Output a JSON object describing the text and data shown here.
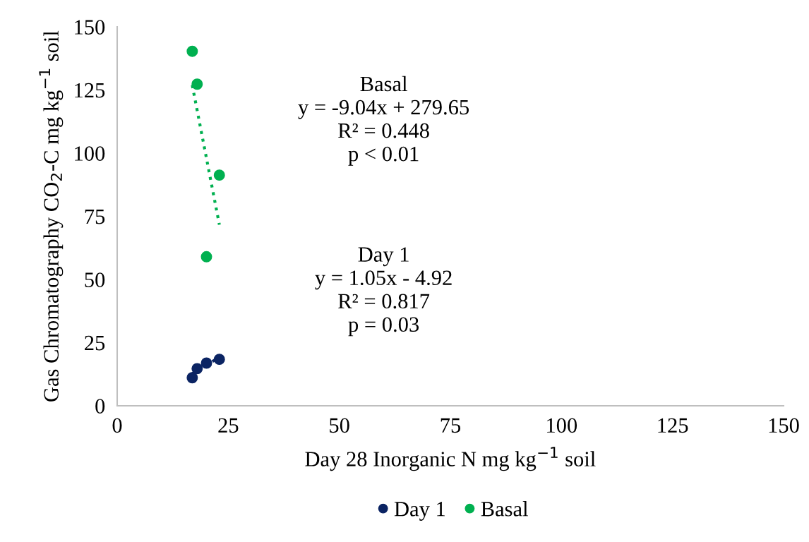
{
  "chart_data": {
    "type": "scatter",
    "xlabel": "Day 28 Inorganic N mg kg$^{−1}$ soil",
    "ylabel": "Gas Chromatography CO$_{2}$-C mg kg$^{−1}$ soil",
    "xlim": [
      0,
      150
    ],
    "xticks": [
      0,
      25,
      50,
      75,
      100,
      125,
      150
    ],
    "ylim": [
      0,
      150
    ],
    "yticks": [
      0,
      25,
      50,
      75,
      100,
      125,
      150
    ],
    "grid": false,
    "legend": "bottom",
    "marker": "circle",
    "series": [
      {
        "name": "Day 1",
        "color": "#0b2463",
        "x": [
          16.9,
          18.0,
          20.1,
          23.0
        ],
        "values": [
          11.1,
          14.7,
          16.9,
          18.4
        ]
      },
      {
        "name": "Basal",
        "color": "#00b050",
        "x": [
          16.9,
          18.0,
          20.1,
          23.0
        ],
        "values": [
          140.3,
          127.3,
          59.0,
          91.3
        ]
      },
      {
        "type": "line",
        "color": "#0b2463",
        "marker": "none",
        "line_style": "dotted",
        "x": [
          16.9,
          23.0
        ],
        "values": [
          12.8,
          19.2
        ]
      },
      {
        "type": "line",
        "color": "#00b050",
        "marker": "none",
        "line_style": "dotted",
        "x": [
          16.9,
          23.0
        ],
        "values": [
          126.9,
          71.7
        ]
      }
    ],
    "annotations": [
      "Basal\ny = -9.04x + 279.65\nR² = 0.448\np < 0.01",
      "Day 1\ny = 1.05x - 4.92\nR² = 0.817\np = 0.03"
    ]
  }
}
